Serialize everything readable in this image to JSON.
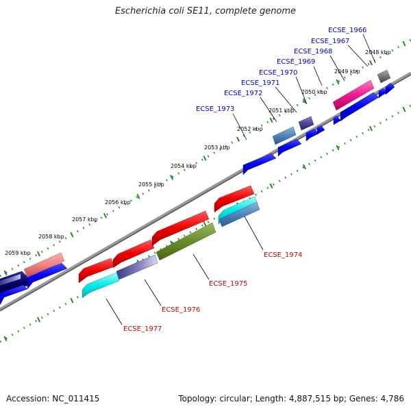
{
  "title": "Escherichia coli SE11, complete genome",
  "footer": {
    "accession": "Accession: NC_011415",
    "summary": "Topology: circular; Length: 4,887,515 bp; Genes: 4,786"
  },
  "colors": {
    "forward_label": "#0000cc",
    "reverse_label": "#cc0000",
    "backbone": "#808080",
    "tick": "#228b22"
  },
  "kbp_labels": [
    "2048 kbp",
    "2049 kbp",
    "2050 kbp",
    "2051 kbp",
    "2052 kbp",
    "2053 kbp",
    "2054 kbp",
    "2055 kbp",
    "2056 kbp",
    "2057 kbp",
    "2058 kbp",
    "2059 kbp"
  ],
  "genes_forward": [
    "ECSE_1966",
    "ECSE_1967",
    "ECSE_1968",
    "ECSE_1969",
    "ECSE_1970",
    "ECSE_1971",
    "ECSE_1972",
    "ECSE_1973"
  ],
  "genes_reverse": [
    "ECSE_1974",
    "ECSE_1975",
    "ECSE_1976",
    "ECSE_1977"
  ]
}
